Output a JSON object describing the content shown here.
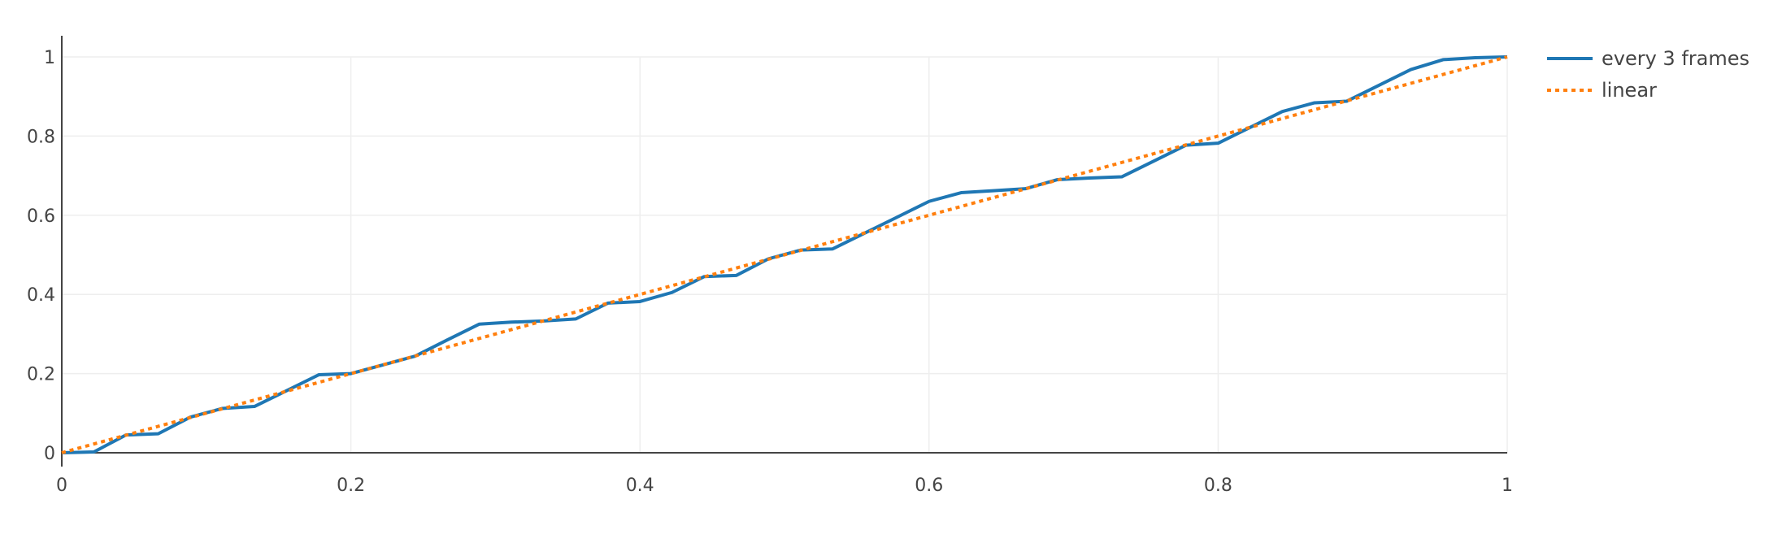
{
  "chart_data": {
    "type": "line",
    "title": "",
    "xlabel": "",
    "ylabel": "",
    "xlim": [
      0,
      1
    ],
    "ylim": [
      0,
      1
    ],
    "grid": true,
    "legend_position": "top-right",
    "x_ticks": [
      "0",
      "0.2",
      "0.4",
      "0.6",
      "0.8",
      "1"
    ],
    "y_ticks": [
      "0",
      "0.2",
      "0.4",
      "0.6",
      "0.8",
      "1"
    ],
    "series": [
      {
        "name": "every 3 frames",
        "style": "solid",
        "color": "#1f77b4",
        "x": [
          0,
          0.0222,
          0.0444,
          0.0667,
          0.0889,
          0.1111,
          0.1333,
          0.1556,
          0.1778,
          0.2,
          0.2222,
          0.2444,
          0.2667,
          0.2889,
          0.3111,
          0.3333,
          0.3556,
          0.3778,
          0.4,
          0.4222,
          0.4444,
          0.4667,
          0.4889,
          0.5111,
          0.5333,
          0.5556,
          0.5778,
          0.6,
          0.6222,
          0.6444,
          0.6667,
          0.6889,
          0.7111,
          0.7333,
          0.7556,
          0.7778,
          0.8,
          0.8222,
          0.8444,
          0.8667,
          0.8889,
          0.9111,
          0.9333,
          0.9556,
          0.9778,
          1
        ],
        "y": [
          0,
          0.002,
          0.045,
          0.048,
          0.09,
          0.112,
          0.117,
          0.157,
          0.197,
          0.2,
          0.222,
          0.244,
          0.285,
          0.325,
          0.33,
          0.333,
          0.338,
          0.378,
          0.382,
          0.405,
          0.445,
          0.448,
          0.49,
          0.512,
          0.515,
          0.555,
          0.595,
          0.635,
          0.657,
          0.662,
          0.667,
          0.69,
          0.694,
          0.697,
          0.737,
          0.777,
          0.782,
          0.822,
          0.862,
          0.884,
          0.888,
          0.928,
          0.968,
          0.993,
          0.998,
          1
        ]
      },
      {
        "name": "linear",
        "style": "dotted",
        "color": "#ff7f0e",
        "x": [
          0,
          1
        ],
        "y": [
          0,
          1
        ]
      }
    ]
  }
}
